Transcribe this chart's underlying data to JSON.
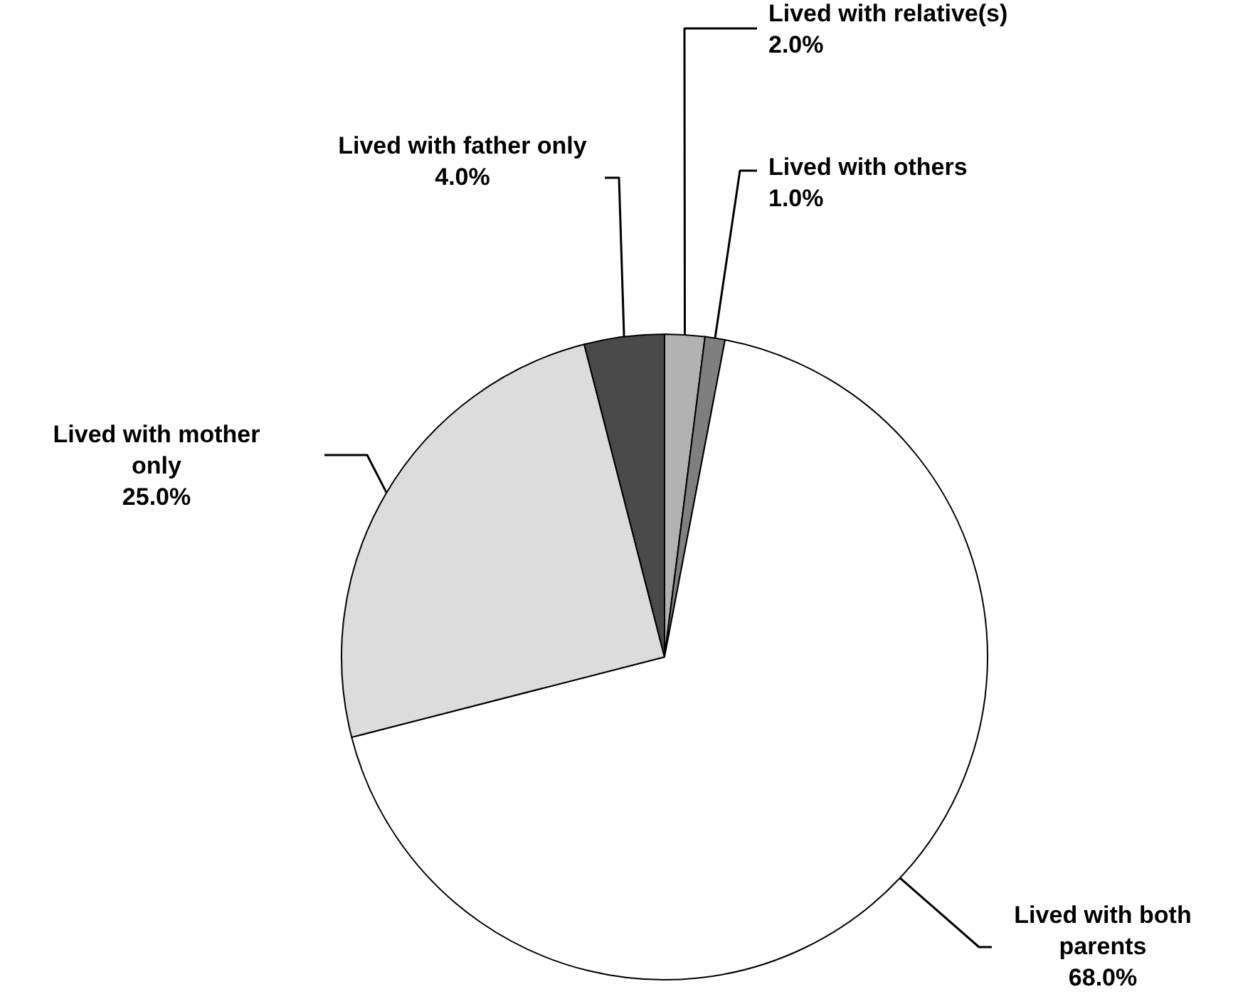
{
  "chart_data": {
    "type": "pie",
    "categories": [
      "Lived with relative(s)",
      "Lived with others",
      "Lived with both parents",
      "Lived with mother only",
      "Lived with father only"
    ],
    "values": [
      2.0,
      1.0,
      68.0,
      25.0,
      4.0
    ],
    "colors": [
      "#b2b2b2",
      "#7f7f7f",
      "#ffffff",
      "#dcdcdc",
      "#4a4a4a"
    ],
    "value_labels": [
      "2.0%",
      "1.0%",
      "68.0%",
      "25.0%",
      "4.0%"
    ]
  }
}
